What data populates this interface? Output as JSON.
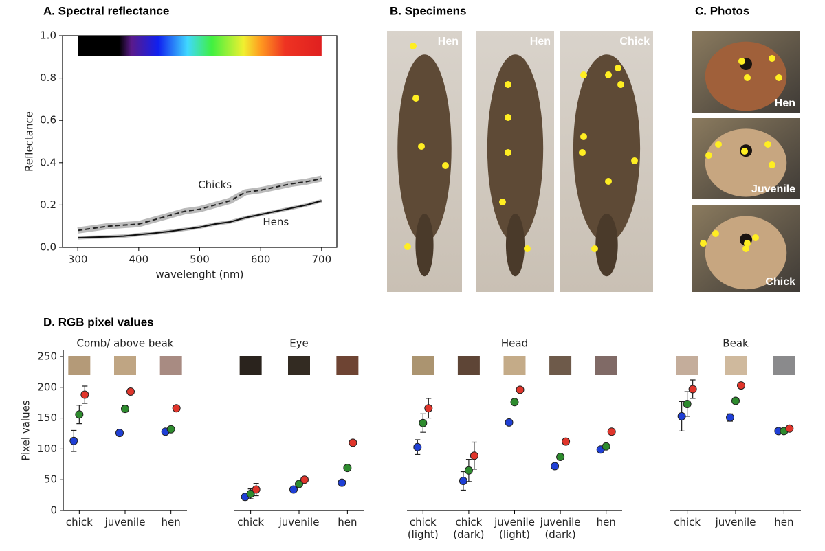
{
  "chart_data": [
    {
      "type": "line",
      "title": "A. Spectral reflectance",
      "x_label": "wavelenght (nm)",
      "y_label": "Reflectance",
      "x": [
        300,
        325,
        350,
        375,
        400,
        425,
        450,
        475,
        500,
        525,
        550,
        575,
        600,
        625,
        650,
        675,
        700
      ],
      "series": [
        {
          "name": "Chicks",
          "color": "#222222",
          "linestyle": "dashed",
          "values": [
            0.08,
            0.09,
            0.1,
            0.105,
            0.11,
            0.13,
            0.15,
            0.17,
            0.18,
            0.2,
            0.22,
            0.26,
            0.27,
            0.285,
            0.3,
            0.31,
            0.325
          ]
        },
        {
          "name": "Hens",
          "color": "#111111",
          "linestyle": "solid",
          "values": [
            0.045,
            0.048,
            0.05,
            0.053,
            0.06,
            0.067,
            0.075,
            0.085,
            0.095,
            0.11,
            0.12,
            0.14,
            0.155,
            0.17,
            0.185,
            0.2,
            0.22
          ]
        }
      ],
      "xlim": [
        275,
        725
      ],
      "ylim": [
        0,
        1
      ],
      "xticks": [
        300,
        400,
        500,
        600,
        700
      ],
      "yticks": [
        {
          "value": 0,
          "label": "0.0"
        },
        0.2,
        0.4,
        0.6,
        0.8,
        {
          "value": 1,
          "label": "1.0"
        }
      ]
    },
    {
      "type": "dot",
      "title": "Comb/ above beak",
      "y_label": "Pixel values",
      "categories": [
        "chick",
        "juvenile",
        "hen"
      ],
      "swatches": [
        "#b49a78",
        "#bfa583",
        "#a88b82"
      ],
      "series": [
        {
          "color": "#1f3fd6",
          "values": [
            113,
            126,
            128
          ],
          "errors": [
            17,
            5,
            3
          ]
        },
        {
          "color": "#2e8b2e",
          "values": [
            156,
            165,
            132
          ],
          "errors": [
            15,
            5,
            2
          ]
        },
        {
          "color": "#e0352b",
          "values": [
            188,
            193,
            166
          ],
          "errors": [
            14,
            5,
            3
          ]
        }
      ],
      "ylim": [
        0,
        260
      ],
      "yticks": [
        0,
        50,
        100,
        150,
        200,
        250
      ]
    },
    {
      "type": "dot",
      "title": "Eye",
      "categories": [
        "chick",
        "juvenile",
        "hen"
      ],
      "swatches": [
        "#2a231d",
        "#332b22",
        "#6e4433"
      ],
      "series": [
        {
          "color": "#1f3fd6",
          "values": [
            22,
            34,
            45
          ],
          "errors": [
            5,
            3,
            2
          ]
        },
        {
          "color": "#2e8b2e",
          "values": [
            27,
            43,
            69
          ],
          "errors": [
            8,
            3,
            2
          ]
        },
        {
          "color": "#e0352b",
          "values": [
            34,
            50,
            110
          ],
          "errors": [
            10,
            3,
            4
          ]
        }
      ],
      "ylim": [
        0,
        260
      ]
    },
    {
      "type": "dot",
      "title": "Head",
      "categories": [
        "chick\n(light)",
        "chick\n(dark)",
        "juvenile\n(light)",
        "juvenile\n(dark)",
        "hen"
      ],
      "swatches": [
        "#ab9470",
        "#5e4536",
        "#c4ab88",
        "#6e5a4a",
        "#806a66"
      ],
      "series": [
        {
          "color": "#1f3fd6",
          "values": [
            103,
            48,
            143,
            72,
            99
          ],
          "errors": [
            12,
            15,
            3,
            3,
            3
          ]
        },
        {
          "color": "#2e8b2e",
          "values": [
            142,
            65,
            176,
            87,
            104
          ],
          "errors": [
            15,
            18,
            3,
            3,
            2
          ]
        },
        {
          "color": "#e0352b",
          "values": [
            166,
            89,
            196,
            112,
            128
          ],
          "errors": [
            16,
            22,
            3,
            5,
            3
          ]
        }
      ],
      "ylim": [
        0,
        260
      ]
    },
    {
      "type": "dot",
      "title": "Beak",
      "categories": [
        "chick",
        "juvenile",
        "hen"
      ],
      "swatches": [
        "#c4ad9b",
        "#cfb99d",
        "#8a8a8c"
      ],
      "series": [
        {
          "color": "#1f3fd6",
          "values": [
            153,
            151,
            129
          ],
          "errors": [
            24,
            6,
            4
          ]
        },
        {
          "color": "#2e8b2e",
          "values": [
            173,
            178,
            129
          ],
          "errors": [
            20,
            3,
            3
          ]
        },
        {
          "color": "#e0352b",
          "values": [
            197,
            203,
            133
          ],
          "errors": [
            15,
            3,
            4
          ]
        }
      ],
      "ylim": [
        0,
        260
      ]
    }
  ],
  "specimens": {
    "title": "B. Specimens",
    "labels": [
      "Hen",
      "Hen",
      "Chick"
    ]
  },
  "photos": {
    "title": "C. Photos",
    "labels": [
      "Hen",
      "Juvenile",
      "Chick"
    ]
  },
  "rgb_panel": {
    "title": "D. RGB pixel values"
  }
}
